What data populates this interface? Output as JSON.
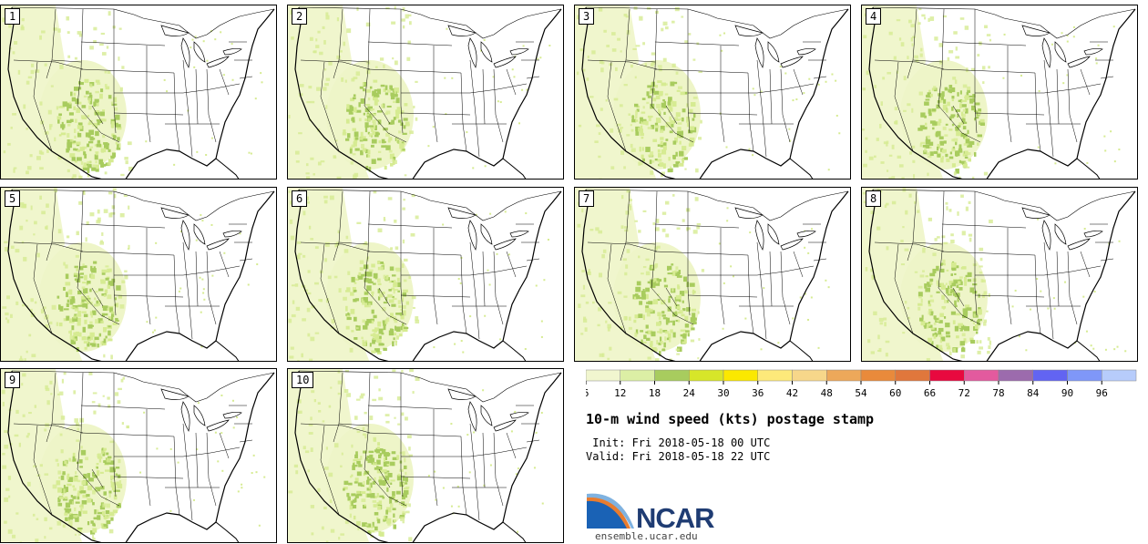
{
  "title": "10-m wind speed (kts) postage stamp",
  "init": " Init: Fri 2018-05-18 00 UTC",
  "valid": "Valid: Fri 2018-05-18 22 UTC",
  "logo": {
    "name": "NCAR",
    "url": "ensemble.ucar.edu"
  },
  "members": [
    "1",
    "2",
    "3",
    "4",
    "5",
    "6",
    "7",
    "8",
    "9",
    "10"
  ],
  "colorbar": {
    "ticks": [
      "6",
      "12",
      "18",
      "24",
      "30",
      "36",
      "42",
      "48",
      "54",
      "60",
      "66",
      "72",
      "78",
      "84",
      "90",
      "96"
    ],
    "colors": [
      "#f1f6cf",
      "#dcefa5",
      "#a8cc5e",
      "#d7e629",
      "#fbe800",
      "#fde97a",
      "#f7d78a",
      "#eda85a",
      "#e98a3b",
      "#e0773c",
      "#e8093f",
      "#e35a9e",
      "#9c6bad",
      "#6264f2",
      "#7f97f8",
      "#b7ccfb"
    ]
  },
  "colors": {
    "land_light": "#eef5c8",
    "land_mid": "#d6eb92",
    "land_strong": "#a8cc5e",
    "boundary": "#000000"
  }
}
